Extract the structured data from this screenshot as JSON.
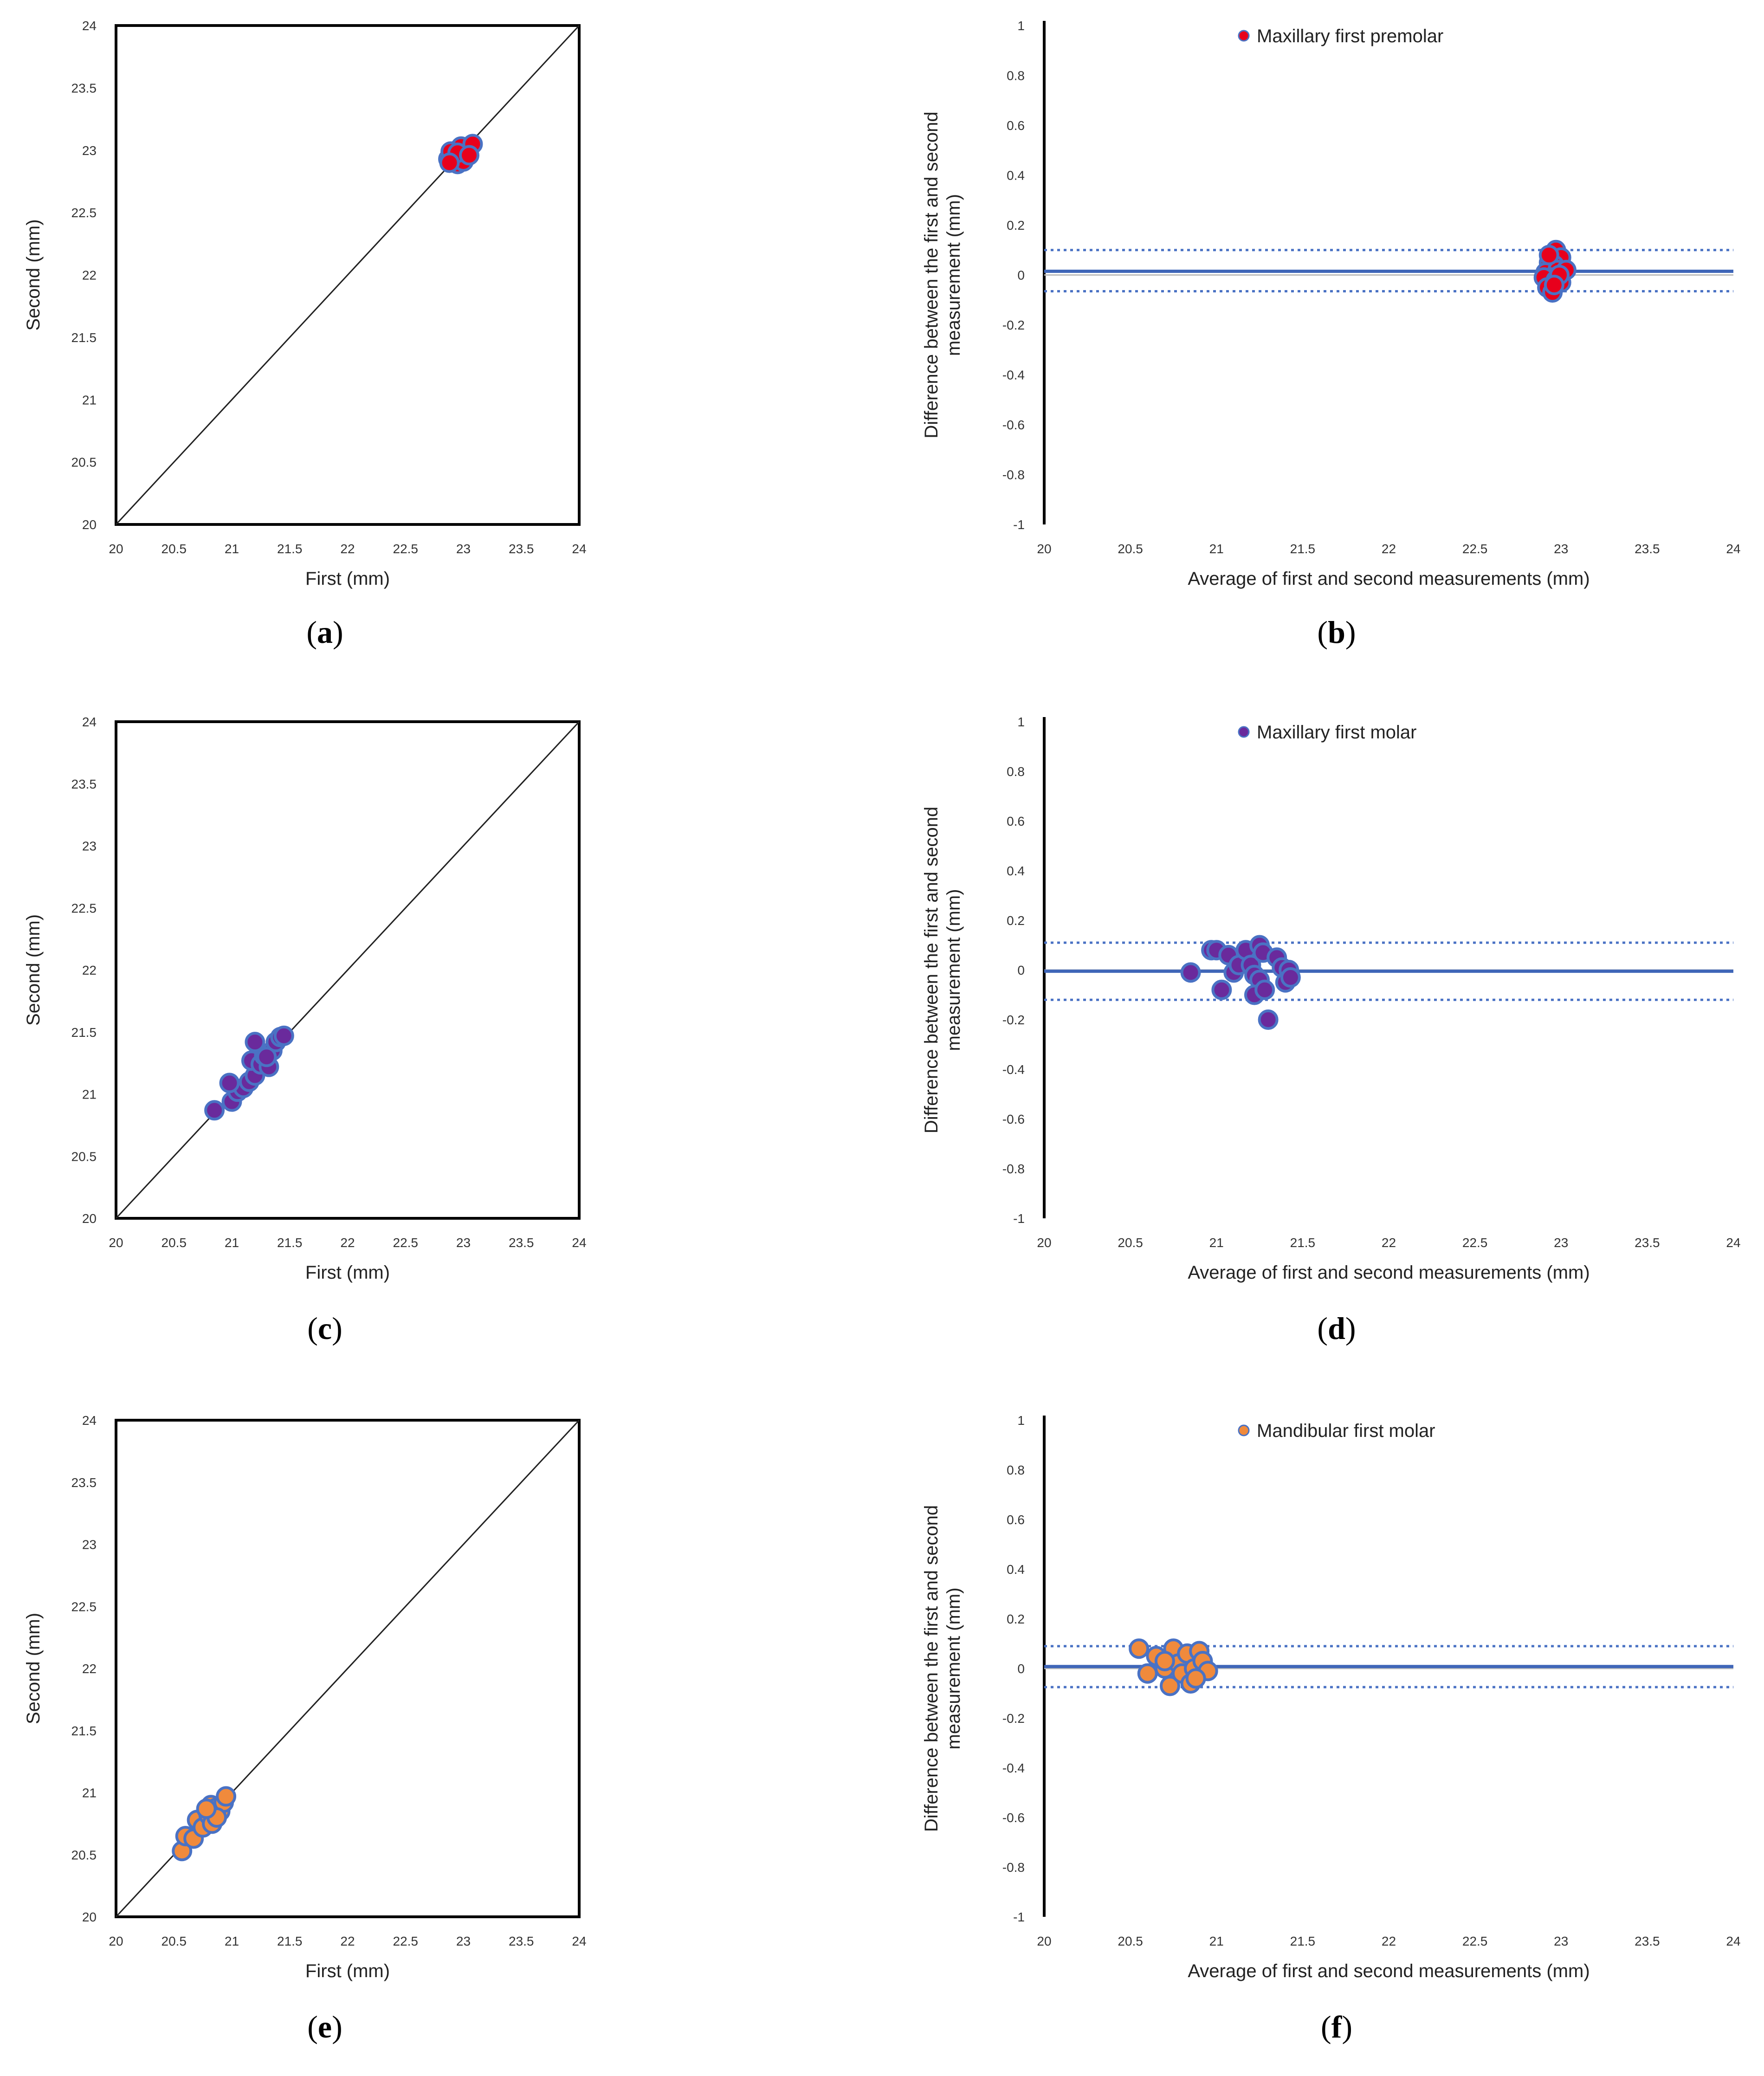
{
  "figure": {
    "panel_label_format": "(_)",
    "panel_labels": [
      "a",
      "b",
      "c",
      "d",
      "e",
      "f"
    ]
  },
  "colors": {
    "premolar_fill": "#e8001c",
    "molar_fill": "#6a2a9c",
    "mandibular_fill": "#f08a3c",
    "point_edge": "#4a72c4",
    "mean_line": "#3f66b8",
    "limit_line": "#4a72c4",
    "identity_line": "#222222"
  },
  "chart_data": [
    {
      "id": "a",
      "type": "scatter",
      "xlabel": "First (mm)",
      "ylabel": "Second (mm)",
      "xlim": [
        20,
        24
      ],
      "ylim": [
        20,
        24
      ],
      "xticks": [
        "20",
        "20.5",
        "21",
        "21.5",
        "22",
        "22.5",
        "23",
        "23.5",
        "24"
      ],
      "yticks": [
        "20",
        "20.5",
        "21",
        "21.5",
        "22",
        "22.5",
        "23",
        "23.5",
        "24"
      ],
      "identity_line": true,
      "point_color": "premolar",
      "points": [
        [
          22.87,
          22.93
        ],
        [
          22.9,
          22.96
        ],
        [
          22.93,
          22.99
        ],
        [
          22.96,
          23.01
        ],
        [
          22.99,
          23.0
        ],
        [
          23.02,
          22.97
        ],
        [
          22.97,
          22.92
        ],
        [
          22.95,
          22.89
        ],
        [
          23.01,
          22.94
        ],
        [
          23.04,
          22.99
        ],
        [
          22.92,
          22.95
        ],
        [
          22.98,
          23.03
        ],
        [
          22.89,
          22.99
        ],
        [
          23.0,
          22.91
        ],
        [
          23.08,
          23.05
        ],
        [
          22.95,
          22.98
        ],
        [
          22.88,
          22.9
        ],
        [
          23.05,
          22.96
        ]
      ]
    },
    {
      "id": "b",
      "type": "scatter",
      "xlabel": "Average of first and second measurements (mm)",
      "ylabel": "Difference between the first and second measurement (mm)",
      "xlim": [
        20,
        24
      ],
      "ylim": [
        -1,
        1
      ],
      "xticks": [
        "20",
        "20.5",
        "21",
        "21.5",
        "22",
        "22.5",
        "23",
        "23.5",
        "24"
      ],
      "yticks": [
        "-1",
        "-0.8",
        "-0.6",
        "-0.4",
        "-0.2",
        "0",
        "0.2",
        "0.4",
        "0.6",
        "0.8",
        "1"
      ],
      "legend": "Maxillary first premolar",
      "point_color": "premolar",
      "mean_diff": 0.015,
      "upper_limit": 0.1,
      "lower_limit": -0.065,
      "points": [
        [
          22.97,
          0.1
        ],
        [
          23.0,
          0.07
        ],
        [
          22.93,
          0.05
        ],
        [
          22.96,
          0.04
        ],
        [
          22.91,
          0.01
        ],
        [
          22.98,
          0.02
        ],
        [
          23.03,
          0.02
        ],
        [
          22.94,
          -0.01
        ],
        [
          22.9,
          -0.01
        ],
        [
          22.97,
          -0.02
        ],
        [
          23.0,
          -0.03
        ],
        [
          22.92,
          -0.05
        ],
        [
          22.95,
          -0.07
        ],
        [
          22.99,
          0.0
        ],
        [
          22.93,
          0.08
        ],
        [
          22.96,
          -0.04
        ]
      ]
    },
    {
      "id": "c",
      "type": "scatter",
      "xlabel": "First (mm)",
      "ylabel": "Second (mm)",
      "xlim": [
        20,
        24
      ],
      "ylim": [
        20,
        24
      ],
      "xticks": [
        "20",
        "20.5",
        "21",
        "21.5",
        "22",
        "22.5",
        "23",
        "23.5",
        "24"
      ],
      "yticks": [
        "20",
        "20.5",
        "21",
        "21.5",
        "22",
        "22.5",
        "23",
        "23.5",
        "24"
      ],
      "identity_line": true,
      "point_color": "molar",
      "points": [
        [
          20.85,
          20.87
        ],
        [
          21.0,
          20.94
        ],
        [
          21.05,
          21.02
        ],
        [
          21.1,
          21.05
        ],
        [
          20.98,
          21.09
        ],
        [
          21.15,
          21.1
        ],
        [
          21.2,
          21.15
        ],
        [
          21.17,
          21.27
        ],
        [
          21.25,
          21.24
        ],
        [
          21.32,
          21.22
        ],
        [
          21.28,
          21.31
        ],
        [
          21.35,
          21.35
        ],
        [
          21.38,
          21.42
        ],
        [
          21.42,
          21.46
        ],
        [
          21.2,
          21.42
        ],
        [
          21.45,
          21.47
        ],
        [
          21.3,
          21.3
        ]
      ]
    },
    {
      "id": "d",
      "type": "scatter",
      "xlabel": "Average of first and second measurements (mm)",
      "ylabel": "Difference between the first and second measurement (mm)",
      "xlim": [
        20,
        24
      ],
      "ylim": [
        -1,
        1
      ],
      "xticks": [
        "20",
        "20.5",
        "21",
        "21.5",
        "22",
        "22.5",
        "23",
        "23.5",
        "24"
      ],
      "yticks": [
        "-1",
        "-0.8",
        "-0.6",
        "-0.4",
        "-0.2",
        "0",
        "0.2",
        "0.4",
        "0.6",
        "0.8",
        "1"
      ],
      "legend": "Maxillary first molar",
      "point_color": "molar",
      "mean_diff": -0.005,
      "upper_limit": 0.11,
      "lower_limit": -0.12,
      "points": [
        [
          20.85,
          -0.01
        ],
        [
          20.97,
          0.08
        ],
        [
          21.0,
          0.08
        ],
        [
          21.07,
          0.06
        ],
        [
          21.03,
          -0.08
        ],
        [
          21.1,
          -0.01
        ],
        [
          21.13,
          0.02
        ],
        [
          21.17,
          0.08
        ],
        [
          21.2,
          0.02
        ],
        [
          21.22,
          -0.02
        ],
        [
          21.25,
          0.1
        ],
        [
          21.27,
          0.07
        ],
        [
          21.25,
          -0.04
        ],
        [
          21.22,
          -0.1
        ],
        [
          21.28,
          -0.08
        ],
        [
          21.3,
          -0.2
        ],
        [
          21.35,
          0.05
        ],
        [
          21.38,
          0.01
        ],
        [
          21.4,
          -0.05
        ],
        [
          21.42,
          0.0
        ],
        [
          21.43,
          -0.03
        ]
      ]
    },
    {
      "id": "e",
      "type": "scatter",
      "xlabel": "First (mm)",
      "ylabel": "Second (mm)",
      "xlim": [
        20,
        24
      ],
      "ylim": [
        20,
        24
      ],
      "xticks": [
        "20",
        "20.5",
        "21",
        "21.5",
        "22",
        "22.5",
        "23",
        "23.5",
        "24"
      ],
      "yticks": [
        "20",
        "20.5",
        "21",
        "21.5",
        "22",
        "22.5",
        "23",
        "23.5",
        "24"
      ],
      "identity_line": true,
      "point_color": "mandibular",
      "points": [
        [
          20.57,
          20.53
        ],
        [
          20.6,
          20.65
        ],
        [
          20.67,
          20.63
        ],
        [
          20.7,
          20.78
        ],
        [
          20.75,
          20.72
        ],
        [
          20.8,
          20.82
        ],
        [
          20.83,
          20.75
        ],
        [
          20.82,
          20.9
        ],
        [
          20.87,
          20.88
        ],
        [
          20.9,
          20.85
        ],
        [
          20.93,
          20.92
        ],
        [
          20.95,
          20.97
        ],
        [
          20.87,
          20.8
        ],
        [
          20.78,
          20.87
        ]
      ]
    },
    {
      "id": "f",
      "type": "scatter",
      "xlabel": "Average of first and second measurements (mm)",
      "ylabel": "Difference between the first and second measurement (mm)",
      "xlim": [
        20,
        24
      ],
      "ylim": [
        -1,
        1
      ],
      "xticks": [
        "20",
        "20.5",
        "21",
        "21.5",
        "22",
        "22.5",
        "23",
        "23.5",
        "24"
      ],
      "yticks": [
        "-1",
        "-0.8",
        "-0.6",
        "-0.4",
        "-0.2",
        "0",
        "0.2",
        "0.4",
        "0.6",
        "0.8",
        "1"
      ],
      "legend": "Mandibular first molar",
      "point_color": "mandibular",
      "mean_diff": 0.008,
      "upper_limit": 0.09,
      "lower_limit": -0.075,
      "points": [
        [
          20.55,
          0.08
        ],
        [
          20.6,
          -0.02
        ],
        [
          20.65,
          0.05
        ],
        [
          20.7,
          0.0
        ],
        [
          20.73,
          -0.07
        ],
        [
          20.75,
          0.08
        ],
        [
          20.78,
          0.02
        ],
        [
          20.8,
          -0.02
        ],
        [
          20.83,
          0.06
        ],
        [
          20.85,
          -0.06
        ],
        [
          20.87,
          0.0
        ],
        [
          20.9,
          0.07
        ],
        [
          20.92,
          0.03
        ],
        [
          20.95,
          -0.01
        ],
        [
          20.88,
          -0.04
        ],
        [
          20.7,
          0.03
        ]
      ]
    }
  ]
}
